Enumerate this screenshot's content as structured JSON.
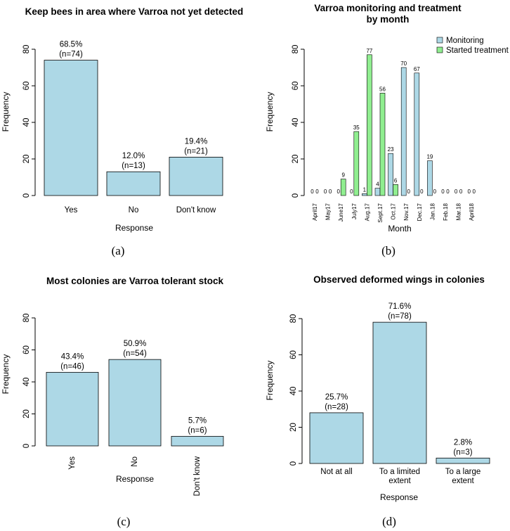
{
  "colors": {
    "bar": "#add8e6",
    "treatment": "#90ee90",
    "stroke": "#000000"
  },
  "captions": [
    "(a)",
    "(b)",
    "(c)",
    "(d)"
  ],
  "chart_data": [
    {
      "type": "bar",
      "title": "Keep bees in area where Varroa not yet detected",
      "xlabel": "Response",
      "ylabel": "Frequency",
      "ylim": [
        0,
        80
      ],
      "yticks": [
        0,
        20,
        40,
        60,
        80
      ],
      "categories": [
        "Yes",
        "No",
        "Don't know"
      ],
      "values": [
        74,
        13,
        21
      ],
      "labels_pct": [
        "68.5%",
        "12.0%",
        "19.4%"
      ],
      "labels_n": [
        "(n=74)",
        "(n=13)",
        "(n=21)"
      ]
    },
    {
      "type": "bar",
      "title": "Varroa monitoring and treatment",
      "subtitle": "by month",
      "xlabel": "Month",
      "ylabel": "Frequency",
      "ylim": [
        0,
        80
      ],
      "yticks": [
        0,
        20,
        40,
        60,
        80
      ],
      "legend_position": "top-right",
      "categories": [
        "April17",
        "May17",
        "June17",
        "July17",
        "Aug.17",
        "Sept.17",
        "Oct.17",
        "Nov.17",
        "Dec.17",
        "Jan.18",
        "Feb.18",
        "Mar.18",
        "April18"
      ],
      "series": [
        {
          "name": "Monitoring",
          "values": [
            0,
            0,
            0,
            0,
            1,
            4,
            23,
            70,
            67,
            19,
            0,
            0,
            0
          ]
        },
        {
          "name": "Started treatment",
          "values": [
            0,
            0,
            9,
            35,
            77,
            56,
            6,
            0,
            0,
            0,
            0,
            0,
            0
          ]
        }
      ]
    },
    {
      "type": "bar",
      "title": "Most colonies are Varroa tolerant stock",
      "xlabel": "Response",
      "ylabel": "Frequency",
      "ylim": [
        0,
        80
      ],
      "yticks": [
        0,
        20,
        40,
        60,
        80
      ],
      "categories": [
        "Yes",
        "No",
        "Don't know"
      ],
      "values": [
        46,
        54,
        6
      ],
      "labels_pct": [
        "43.4%",
        "50.9%",
        "5.7%"
      ],
      "labels_n": [
        "(n=46)",
        "(n=54)",
        "(n=6)"
      ]
    },
    {
      "type": "bar",
      "title": "Observed deformed wings in colonies",
      "xlabel": "Response",
      "ylabel": "Frequency",
      "ylim": [
        0,
        80
      ],
      "yticks": [
        0,
        20,
        40,
        60,
        80
      ],
      "categories": [
        "Not at all",
        "To a limited extent",
        "To a large extent"
      ],
      "values": [
        28,
        78,
        3
      ],
      "labels_pct": [
        "25.7%",
        "71.6%",
        "2.8%"
      ],
      "labels_n": [
        "(n=28)",
        "(n=78)",
        "(n=3)"
      ]
    }
  ]
}
